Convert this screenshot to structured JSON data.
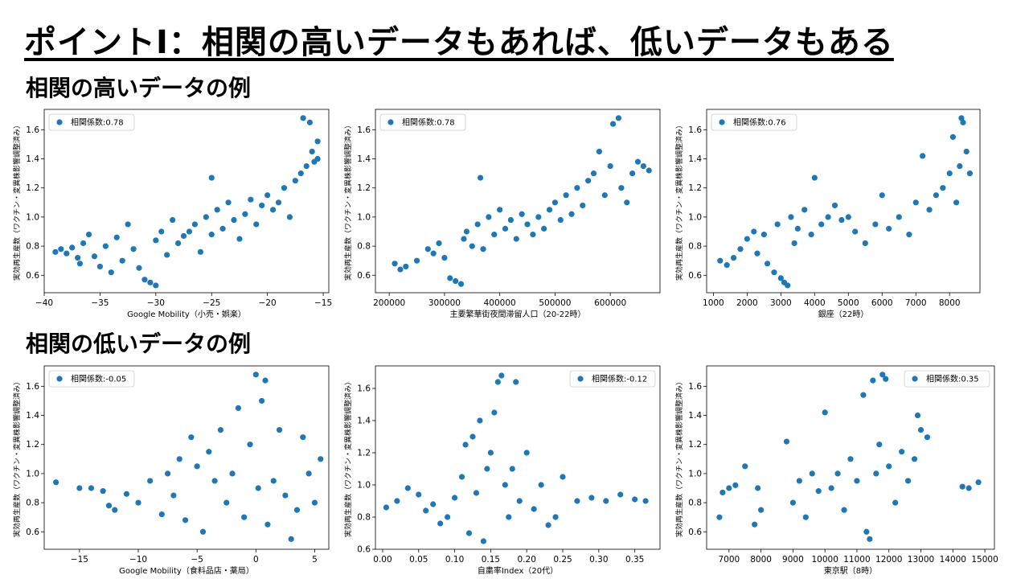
{
  "title": "ポイントⅠ：相関の高いデータもあれば、低いデータもある",
  "sections": {
    "high": "相関の高いデータの例",
    "low": "相関の低いデータの例"
  },
  "colors": {
    "marker": "#1f77b4"
  },
  "chart_data": [
    {
      "type": "scatter",
      "xlabel": "Google Mobility（小売・娯楽）",
      "ylabel": "実効再生産数（ワクチン・変異株影響調整済み）",
      "legend": "相関係数:0.78",
      "legend_position": "upper-left",
      "xlim": [
        -40,
        -14.5
      ],
      "ylim": [
        0.48,
        1.74
      ],
      "xticks": [
        -40,
        -35,
        -30,
        -25,
        -20,
        -15
      ],
      "yticks": [
        0.6,
        0.8,
        1.0,
        1.2,
        1.4,
        1.6
      ],
      "points": [
        [
          -39,
          0.76
        ],
        [
          -38.5,
          0.78
        ],
        [
          -38,
          0.75
        ],
        [
          -37.5,
          0.79
        ],
        [
          -37,
          0.72
        ],
        [
          -36.8,
          0.68
        ],
        [
          -36.5,
          0.82
        ],
        [
          -36,
          0.88
        ],
        [
          -35.5,
          0.73
        ],
        [
          -35,
          0.66
        ],
        [
          -34.5,
          0.8
        ],
        [
          -34,
          0.62
        ],
        [
          -33.5,
          0.86
        ],
        [
          -33,
          0.7
        ],
        [
          -32.5,
          0.95
        ],
        [
          -32,
          0.78
        ],
        [
          -31.5,
          0.65
        ],
        [
          -31,
          0.57
        ],
        [
          -30.5,
          0.55
        ],
        [
          -30,
          0.53
        ],
        [
          -30,
          0.84
        ],
        [
          -29.5,
          0.9
        ],
        [
          -29,
          0.74
        ],
        [
          -28.5,
          0.98
        ],
        [
          -28,
          0.82
        ],
        [
          -27.5,
          0.87
        ],
        [
          -27,
          0.9
        ],
        [
          -26.5,
          0.95
        ],
        [
          -26,
          0.76
        ],
        [
          -25.5,
          1.0
        ],
        [
          -25,
          0.88
        ],
        [
          -25,
          1.27
        ],
        [
          -24.5,
          1.05
        ],
        [
          -24,
          0.92
        ],
        [
          -23.5,
          1.1
        ],
        [
          -23,
          0.98
        ],
        [
          -22.5,
          0.85
        ],
        [
          -22,
          1.02
        ],
        [
          -21.5,
          1.12
        ],
        [
          -21,
          0.95
        ],
        [
          -20.5,
          1.08
        ],
        [
          -20,
          1.15
        ],
        [
          -19.5,
          1.05
        ],
        [
          -19,
          1.1
        ],
        [
          -18.5,
          1.2
        ],
        [
          -18,
          1.0
        ],
        [
          -17.5,
          1.25
        ],
        [
          -17,
          1.3
        ],
        [
          -16.8,
          1.68
        ],
        [
          -16.5,
          1.35
        ],
        [
          -16.2,
          1.65
        ],
        [
          -16,
          1.45
        ],
        [
          -15.8,
          1.38
        ],
        [
          -15.5,
          1.52
        ],
        [
          -15.5,
          1.4
        ]
      ]
    },
    {
      "type": "scatter",
      "xlabel": "主要繁華街夜間滞留人口（20-22時）",
      "ylabel": "実効再生産数（ワクチン・変異株影響調整済み）",
      "legend": "相関係数:0.78",
      "legend_position": "upper-left",
      "xlim": [
        175000,
        690000
      ],
      "ylim": [
        0.48,
        1.74
      ],
      "xticks": [
        200000,
        300000,
        400000,
        500000,
        600000
      ],
      "yticks": [
        0.6,
        0.8,
        1.0,
        1.2,
        1.4,
        1.6
      ],
      "points": [
        [
          210000,
          0.68
        ],
        [
          220000,
          0.64
        ],
        [
          230000,
          0.66
        ],
        [
          250000,
          0.7
        ],
        [
          270000,
          0.78
        ],
        [
          280000,
          0.75
        ],
        [
          290000,
          0.82
        ],
        [
          300000,
          0.72
        ],
        [
          310000,
          0.58
        ],
        [
          320000,
          0.56
        ],
        [
          330000,
          0.54
        ],
        [
          335000,
          0.85
        ],
        [
          340000,
          0.9
        ],
        [
          350000,
          0.8
        ],
        [
          360000,
          0.95
        ],
        [
          365000,
          1.27
        ],
        [
          370000,
          0.78
        ],
        [
          380000,
          1.0
        ],
        [
          390000,
          0.88
        ],
        [
          400000,
          1.05
        ],
        [
          410000,
          0.92
        ],
        [
          420000,
          0.98
        ],
        [
          430000,
          0.85
        ],
        [
          440000,
          1.02
        ],
        [
          450000,
          0.95
        ],
        [
          460000,
          0.88
        ],
        [
          470000,
          1.0
        ],
        [
          480000,
          0.92
        ],
        [
          490000,
          1.05
        ],
        [
          500000,
          1.1
        ],
        [
          510000,
          0.98
        ],
        [
          520000,
          1.15
        ],
        [
          530000,
          1.02
        ],
        [
          540000,
          1.2
        ],
        [
          550000,
          1.08
        ],
        [
          560000,
          1.25
        ],
        [
          570000,
          1.3
        ],
        [
          580000,
          1.45
        ],
        [
          590000,
          1.15
        ],
        [
          600000,
          1.35
        ],
        [
          605000,
          1.64
        ],
        [
          615000,
          1.68
        ],
        [
          620000,
          1.2
        ],
        [
          630000,
          1.1
        ],
        [
          640000,
          1.3
        ],
        [
          650000,
          1.38
        ],
        [
          660000,
          1.35
        ],
        [
          670000,
          1.32
        ]
      ]
    },
    {
      "type": "scatter",
      "xlabel": "銀座（22時）",
      "ylabel": "実効再生産数（ワクチン・変異株影響調整済み）",
      "legend": "相関係数:0.76",
      "legend_position": "upper-left",
      "xlim": [
        800,
        8900
      ],
      "ylim": [
        0.48,
        1.74
      ],
      "xticks": [
        1000,
        2000,
        3000,
        4000,
        5000,
        6000,
        7000,
        8000
      ],
      "yticks": [
        0.6,
        0.8,
        1.0,
        1.2,
        1.4,
        1.6
      ],
      "points": [
        [
          1200,
          0.7
        ],
        [
          1400,
          0.67
        ],
        [
          1600,
          0.72
        ],
        [
          1800,
          0.78
        ],
        [
          2000,
          0.85
        ],
        [
          2200,
          0.9
        ],
        [
          2300,
          0.75
        ],
        [
          2500,
          0.88
        ],
        [
          2600,
          0.68
        ],
        [
          2800,
          0.62
        ],
        [
          2900,
          0.95
        ],
        [
          3000,
          0.58
        ],
        [
          3100,
          0.55
        ],
        [
          3200,
          0.53
        ],
        [
          3300,
          1.0
        ],
        [
          3400,
          0.82
        ],
        [
          3500,
          0.92
        ],
        [
          3700,
          1.05
        ],
        [
          3900,
          0.88
        ],
        [
          4000,
          1.27
        ],
        [
          4200,
          0.95
        ],
        [
          4400,
          1.0
        ],
        [
          4600,
          1.08
        ],
        [
          4800,
          0.98
        ],
        [
          5000,
          1.0
        ],
        [
          5200,
          0.9
        ],
        [
          5500,
          0.82
        ],
        [
          5800,
          0.95
        ],
        [
          6000,
          1.15
        ],
        [
          6200,
          0.92
        ],
        [
          6500,
          1.0
        ],
        [
          6800,
          0.88
        ],
        [
          7000,
          1.1
        ],
        [
          7200,
          1.42
        ],
        [
          7400,
          1.05
        ],
        [
          7600,
          1.15
        ],
        [
          7800,
          1.2
        ],
        [
          8000,
          1.3
        ],
        [
          8100,
          1.55
        ],
        [
          8200,
          1.1
        ],
        [
          8300,
          1.35
        ],
        [
          8350,
          1.68
        ],
        [
          8400,
          1.65
        ],
        [
          8500,
          1.45
        ],
        [
          8600,
          1.3
        ]
      ]
    },
    {
      "type": "scatter",
      "xlabel": "Google Mobility（食料品店・薬局）",
      "ylabel": "実効再生産数（ワクチン・変異株影響調整済み）",
      "legend": "相関係数:-0.05",
      "legend_position": "upper-left",
      "xlim": [
        -18,
        6.2
      ],
      "ylim": [
        0.48,
        1.74
      ],
      "xticks": [
        -15,
        -10,
        -5,
        0,
        5
      ],
      "yticks": [
        0.6,
        0.8,
        1.0,
        1.2,
        1.4,
        1.6
      ],
      "points": [
        [
          -17,
          0.94
        ],
        [
          -15,
          0.9
        ],
        [
          -14,
          0.9
        ],
        [
          -13,
          0.88
        ],
        [
          -12.5,
          0.78
        ],
        [
          -12,
          0.75
        ],
        [
          -11,
          0.86
        ],
        [
          -10,
          0.8
        ],
        [
          -9,
          0.95
        ],
        [
          -8,
          0.72
        ],
        [
          -7.5,
          1.0
        ],
        [
          -7,
          0.85
        ],
        [
          -6.5,
          1.1
        ],
        [
          -6,
          0.68
        ],
        [
          -5.5,
          1.25
        ],
        [
          -5,
          1.05
        ],
        [
          -4.5,
          0.6
        ],
        [
          -4,
          1.15
        ],
        [
          -3.5,
          0.95
        ],
        [
          -3,
          1.3
        ],
        [
          -2.5,
          0.8
        ],
        [
          -2,
          1.0
        ],
        [
          -1.5,
          1.45
        ],
        [
          -1,
          0.7
        ],
        [
          -0.5,
          1.2
        ],
        [
          0,
          1.68
        ],
        [
          0.2,
          0.9
        ],
        [
          0.5,
          1.5
        ],
        [
          0.8,
          1.64
        ],
        [
          1,
          0.65
        ],
        [
          1.5,
          0.95
        ],
        [
          2,
          1.3
        ],
        [
          2.5,
          0.85
        ],
        [
          3,
          0.55
        ],
        [
          3.5,
          0.75
        ],
        [
          4,
          1.25
        ],
        [
          4.5,
          1.0
        ],
        [
          5,
          0.8
        ],
        [
          5.5,
          1.1
        ]
      ]
    },
    {
      "type": "scatter",
      "xlabel": "自粛率Index（20代）",
      "ylabel": "実効再生産数（ワクチン・変異株影響調整済み）",
      "legend": "相関係数:-0.12",
      "legend_position": "upper-right",
      "xlim": [
        -0.01,
        0.385
      ],
      "ylim": [
        0.6,
        1.74
      ],
      "xticks": [
        0.0,
        0.05,
        0.1,
        0.15,
        0.2,
        0.25,
        0.3,
        0.35
      ],
      "yticks": [
        0.6,
        0.8,
        1.0,
        1.2,
        1.4,
        1.6
      ],
      "points": [
        [
          0.005,
          0.86
        ],
        [
          0.02,
          0.9
        ],
        [
          0.035,
          0.98
        ],
        [
          0.05,
          0.94
        ],
        [
          0.06,
          0.84
        ],
        [
          0.07,
          0.88
        ],
        [
          0.08,
          0.76
        ],
        [
          0.09,
          0.8
        ],
        [
          0.1,
          0.92
        ],
        [
          0.11,
          1.05
        ],
        [
          0.115,
          1.25
        ],
        [
          0.12,
          0.7
        ],
        [
          0.125,
          1.3
        ],
        [
          0.13,
          0.95
        ],
        [
          0.135,
          1.4
        ],
        [
          0.14,
          0.65
        ],
        [
          0.145,
          1.1
        ],
        [
          0.15,
          1.2
        ],
        [
          0.155,
          1.45
        ],
        [
          0.16,
          1.64
        ],
        [
          0.165,
          1.68
        ],
        [
          0.17,
          1.0
        ],
        [
          0.175,
          0.8
        ],
        [
          0.18,
          1.1
        ],
        [
          0.185,
          1.64
        ],
        [
          0.19,
          0.9
        ],
        [
          0.2,
          1.2
        ],
        [
          0.21,
          0.85
        ],
        [
          0.22,
          1.0
        ],
        [
          0.23,
          0.75
        ],
        [
          0.24,
          0.8
        ],
        [
          0.25,
          1.05
        ],
        [
          0.27,
          0.9
        ],
        [
          0.29,
          0.92
        ],
        [
          0.31,
          0.9
        ],
        [
          0.33,
          0.94
        ],
        [
          0.35,
          0.91
        ],
        [
          0.365,
          0.9
        ]
      ]
    },
    {
      "type": "scatter",
      "xlabel": "東京駅（8時）",
      "ylabel": "実効再生産数（ワクチン・変異株影響調整済み）",
      "legend": "相関係数:0.35",
      "legend_position": "upper-right",
      "xlim": [
        6300,
        15300
      ],
      "ylim": [
        0.48,
        1.74
      ],
      "xticks": [
        7000,
        8000,
        9000,
        10000,
        11000,
        12000,
        13000,
        14000,
        15000
      ],
      "yticks": [
        0.6,
        0.8,
        1.0,
        1.2,
        1.4,
        1.6
      ],
      "points": [
        [
          6700,
          0.7
        ],
        [
          6800,
          0.87
        ],
        [
          7000,
          0.9
        ],
        [
          7200,
          0.92
        ],
        [
          7500,
          1.05
        ],
        [
          7800,
          0.65
        ],
        [
          7900,
          0.9
        ],
        [
          8000,
          0.75
        ],
        [
          8800,
          1.22
        ],
        [
          9000,
          0.8
        ],
        [
          9200,
          0.95
        ],
        [
          9400,
          0.7
        ],
        [
          9600,
          1.0
        ],
        [
          9800,
          0.88
        ],
        [
          10000,
          1.42
        ],
        [
          10200,
          0.9
        ],
        [
          10400,
          1.0
        ],
        [
          10600,
          0.75
        ],
        [
          10800,
          1.1
        ],
        [
          11000,
          0.95
        ],
        [
          11200,
          1.54
        ],
        [
          11300,
          0.6
        ],
        [
          11400,
          0.55
        ],
        [
          11500,
          1.64
        ],
        [
          11600,
          1.0
        ],
        [
          11700,
          1.2
        ],
        [
          11800,
          1.68
        ],
        [
          11900,
          1.65
        ],
        [
          12000,
          1.05
        ],
        [
          12200,
          0.8
        ],
        [
          12400,
          1.15
        ],
        [
          12600,
          0.95
        ],
        [
          12800,
          1.1
        ],
        [
          12900,
          1.4
        ],
        [
          13000,
          1.3
        ],
        [
          13200,
          1.25
        ],
        [
          14300,
          0.91
        ],
        [
          14500,
          0.9
        ],
        [
          14800,
          0.94
        ]
      ]
    }
  ]
}
